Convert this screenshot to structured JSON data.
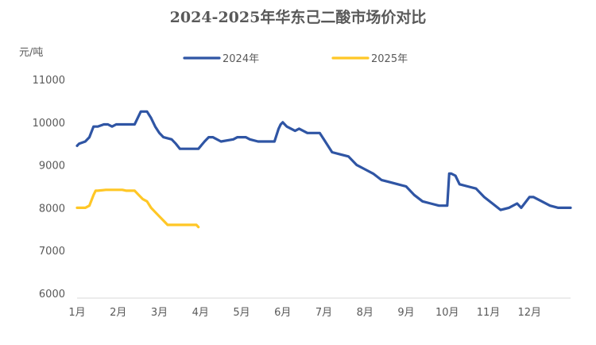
{
  "chart_data": {
    "type": "line",
    "title": "2024-2025年华东己二酸市场价对比",
    "ylabel": "元/吨",
    "xlabel": "",
    "ylim": [
      6000,
      11000
    ],
    "yticks": [
      "6000",
      "7000",
      "8000",
      "9000",
      "10000",
      "11000"
    ],
    "xlim": [
      1,
      13
    ],
    "categories": [
      "1月",
      "2月",
      "3月",
      "4月",
      "5月",
      "6月",
      "7月",
      "8月",
      "9月",
      "10月",
      "11月",
      "12月"
    ],
    "grid": false,
    "legend_position": "top",
    "series": [
      {
        "name": "2024年",
        "color": "#2F55A4",
        "x": [
          1.0,
          1.05,
          1.2,
          1.3,
          1.4,
          1.5,
          1.65,
          1.75,
          1.85,
          1.95,
          2.0,
          2.05,
          2.2,
          2.4,
          2.5,
          2.55,
          2.6,
          2.7,
          2.8,
          2.9,
          3.0,
          3.1,
          3.3,
          3.4,
          3.5,
          3.6,
          3.8,
          3.95,
          4.1,
          4.2,
          4.3,
          4.5,
          4.8,
          4.9,
          5.1,
          5.2,
          5.4,
          5.6,
          5.8,
          5.9,
          5.95,
          6.0,
          6.05,
          6.1,
          6.3,
          6.4,
          6.6,
          6.8,
          6.9,
          7.0,
          7.2,
          7.4,
          7.6,
          7.8,
          8.0,
          8.2,
          8.4,
          8.6,
          8.8,
          9.0,
          9.2,
          9.4,
          9.6,
          9.8,
          10.0,
          10.05,
          10.1,
          10.2,
          10.3,
          10.5,
          10.7,
          10.9,
          11.1,
          11.3,
          11.5,
          11.7,
          11.8,
          12.0,
          12.1,
          12.3,
          12.5,
          12.7,
          12.8,
          13.0
        ],
        "values": [
          9450,
          9500,
          9550,
          9650,
          9900,
          9900,
          9950,
          9950,
          9900,
          9950,
          9950,
          9950,
          9950,
          9950,
          10150,
          10250,
          10250,
          10250,
          10100,
          9900,
          9750,
          9650,
          9600,
          9500,
          9380,
          9380,
          9380,
          9380,
          9550,
          9650,
          9650,
          9550,
          9600,
          9650,
          9650,
          9600,
          9550,
          9550,
          9550,
          9850,
          9950,
          10000,
          9950,
          9900,
          9800,
          9850,
          9750,
          9750,
          9750,
          9600,
          9300,
          9250,
          9200,
          9000,
          8900,
          8800,
          8650,
          8600,
          8550,
          8500,
          8300,
          8150,
          8100,
          8050,
          8050,
          8800,
          8800,
          8750,
          8550,
          8500,
          8450,
          8250,
          8100,
          7950,
          8000,
          8100,
          8000,
          8250,
          8250,
          8150,
          8050,
          8000,
          8000,
          8000
        ]
      },
      {
        "name": "2025年",
        "color": "#FFC726",
        "x": [
          1.0,
          1.2,
          1.3,
          1.4,
          1.45,
          1.5,
          1.7,
          2.0,
          2.1,
          2.2,
          2.4,
          2.5,
          2.6,
          2.7,
          2.8,
          2.9,
          3.0,
          3.1,
          3.2,
          3.4,
          3.6,
          3.8,
          3.9,
          3.95
        ],
        "values": [
          8000,
          8000,
          8050,
          8300,
          8400,
          8400,
          8420,
          8420,
          8420,
          8400,
          8400,
          8300,
          8200,
          8150,
          8000,
          7900,
          7800,
          7700,
          7600,
          7600,
          7600,
          7600,
          7600,
          7550
        ]
      }
    ]
  }
}
